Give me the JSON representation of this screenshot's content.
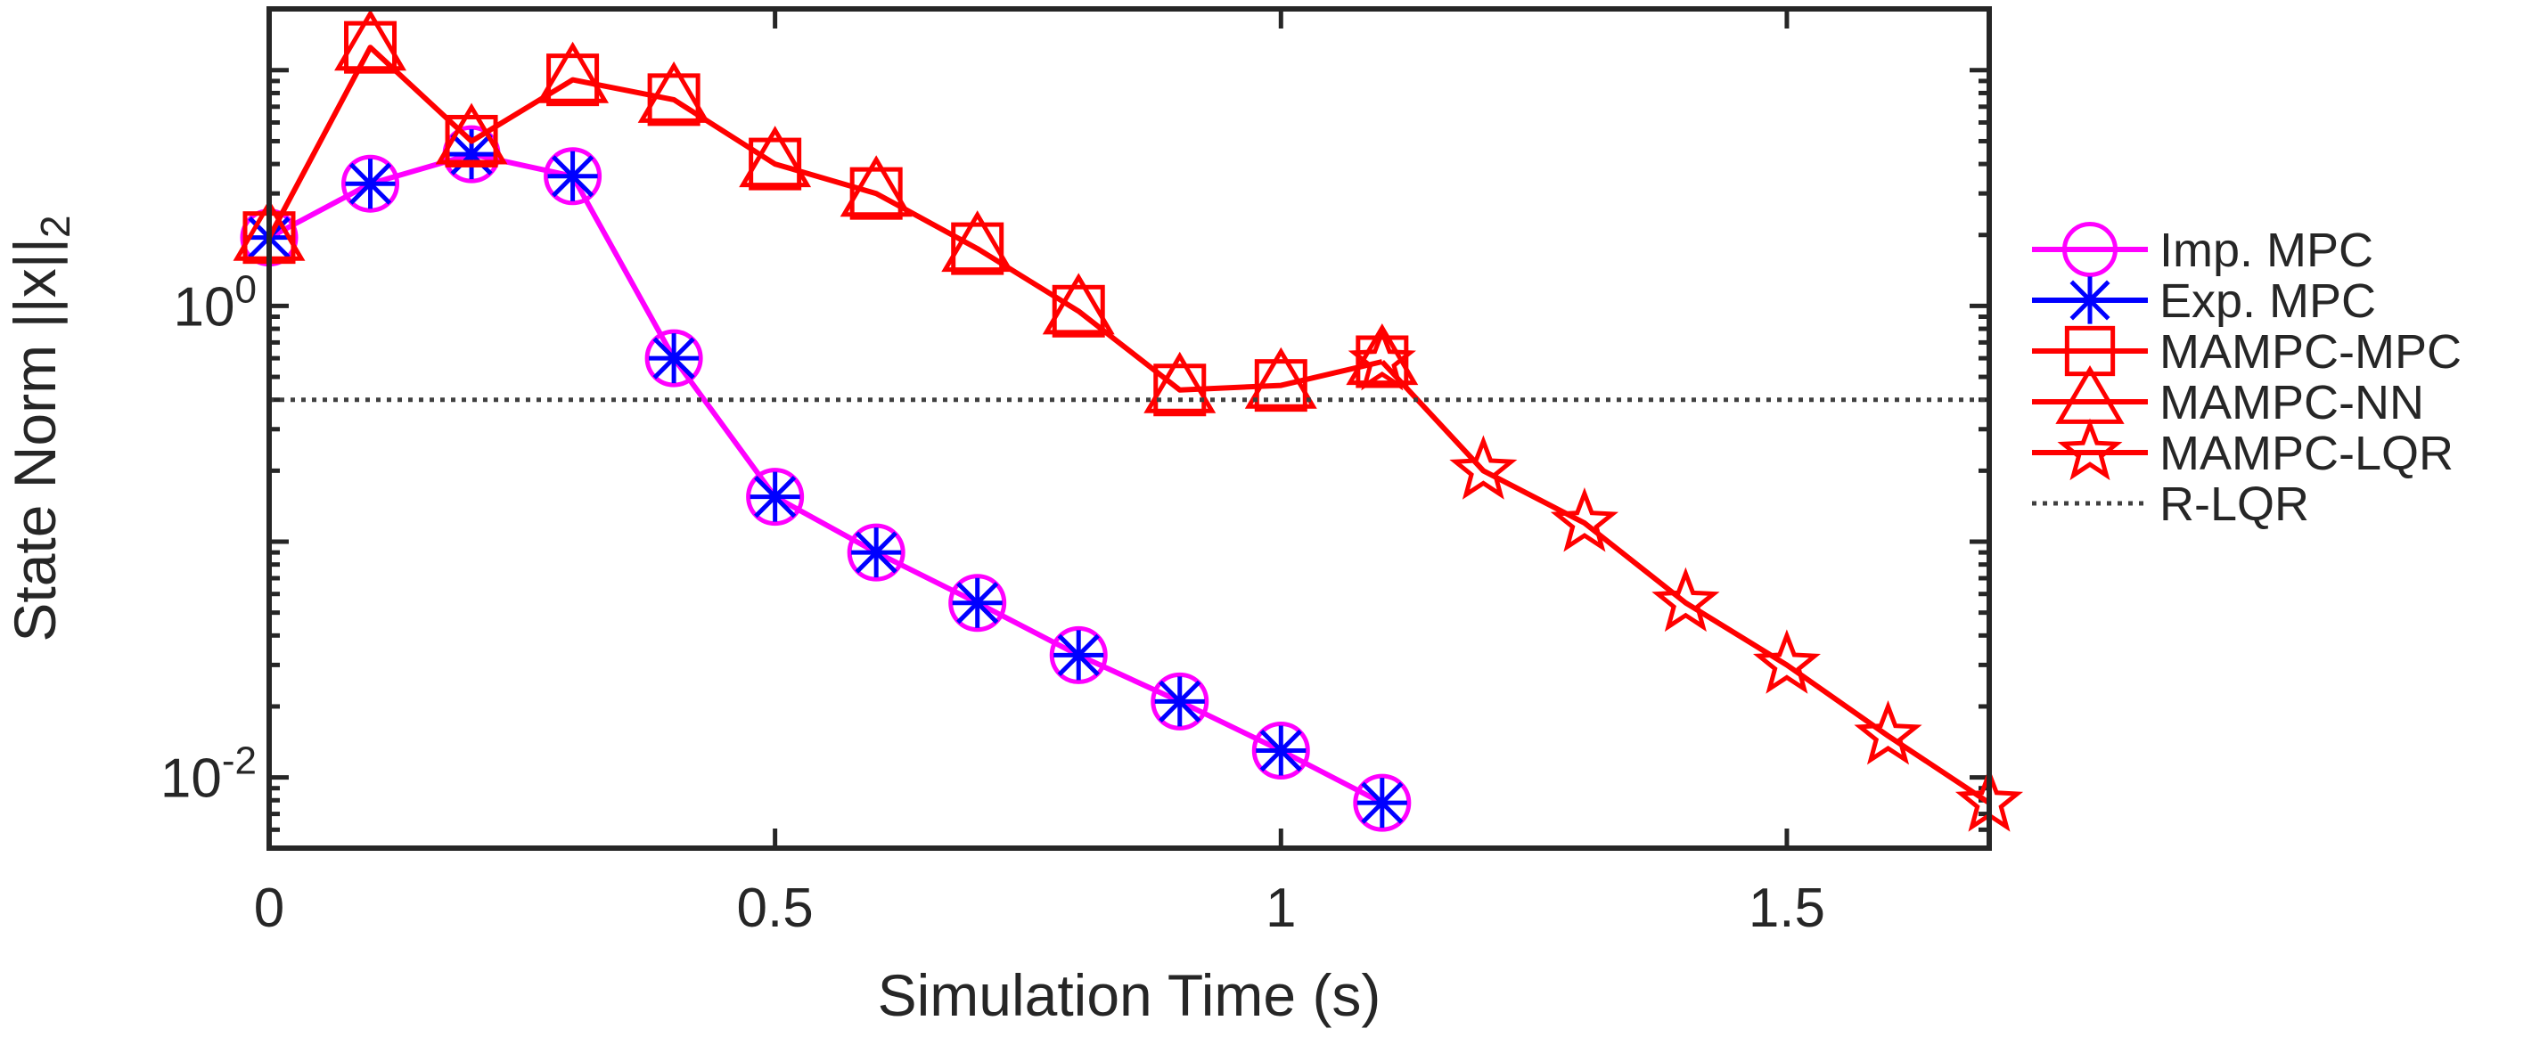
{
  "chart_data": {
    "type": "line",
    "xlabel": "Simulation Time (s)",
    "ylabel_main": "State Norm ||x||",
    "ylabel_sub": "2",
    "yscale": "log",
    "xlim": [
      0,
      1.7
    ],
    "ylim_log10": [
      -2.3,
      1.26
    ],
    "grid": false,
    "legend_placement": "right-outside",
    "xticks": [
      {
        "value": 0,
        "label": "0"
      },
      {
        "value": 0.5,
        "label": "0.5"
      },
      {
        "value": 1,
        "label": "1"
      },
      {
        "value": 1.5,
        "label": "1.5"
      }
    ],
    "yticks": [
      {
        "value": 1,
        "base": "10",
        "exp": "0"
      },
      {
        "value": 0.01,
        "base": "10",
        "exp": "-2"
      }
    ],
    "colors": {
      "magenta": "#ff00ff",
      "blue": "#0000ff",
      "red": "#ff0000",
      "gray": "#404040",
      "axis": "#262626"
    },
    "series": [
      {
        "name": "Imp. MPC",
        "color": "#ff00ff",
        "marker": "circle",
        "line": "solid",
        "x": [
          0,
          0.1,
          0.2,
          0.3,
          0.4,
          0.5,
          0.6,
          0.7,
          0.8,
          0.9,
          1.0,
          1.1
        ],
        "y": [
          1.95,
          3.3,
          4.4,
          3.55,
          0.6,
          0.155,
          0.09,
          0.055,
          0.033,
          0.021,
          0.013,
          0.0078
        ]
      },
      {
        "name": "Exp. MPC",
        "color": "#0000ff",
        "marker": "asterisk",
        "line": "none",
        "x": [
          0,
          0.1,
          0.2,
          0.3,
          0.4,
          0.5,
          0.6,
          0.7,
          0.8,
          0.9,
          1.0,
          1.1
        ],
        "y": [
          1.95,
          3.3,
          4.4,
          3.55,
          0.6,
          0.155,
          0.09,
          0.055,
          0.033,
          0.021,
          0.013,
          0.0078
        ]
      },
      {
        "name": "MAMPC-MPC",
        "color": "#ff0000",
        "marker": "square",
        "line": "solid",
        "x": [
          0,
          0.1,
          0.2,
          0.3,
          0.4,
          0.5,
          0.6,
          0.7,
          0.8,
          0.9,
          1.0,
          1.1
        ],
        "y": [
          1.95,
          12.5,
          5.0,
          9.1,
          7.5,
          4.0,
          3.0,
          1.75,
          0.95,
          0.44,
          0.46,
          0.58
        ]
      },
      {
        "name": "MAMPC-NN",
        "color": "#ff0000",
        "marker": "triangle",
        "line": "none",
        "x": [
          0,
          0.1,
          0.2,
          0.3,
          0.4,
          0.5,
          0.6,
          0.7,
          0.8,
          0.9,
          1.0,
          1.1
        ],
        "y": [
          1.95,
          12.5,
          5.0,
          9.1,
          7.5,
          4.0,
          3.0,
          1.75,
          0.95,
          0.44,
          0.46,
          0.58
        ]
      },
      {
        "name": "MAMPC-LQR",
        "color": "#ff0000",
        "marker": "star",
        "line": "solid",
        "x": [
          1.1,
          1.2,
          1.3,
          1.4,
          1.5,
          1.6,
          1.7
        ],
        "y": [
          0.58,
          0.2,
          0.12,
          0.055,
          0.03,
          0.015,
          0.0078
        ]
      },
      {
        "name": "R-LQR",
        "color": "#404040",
        "marker": "none",
        "line": "dotted",
        "x": [
          0,
          1.7
        ],
        "y": [
          0.4,
          0.4
        ]
      }
    ]
  }
}
